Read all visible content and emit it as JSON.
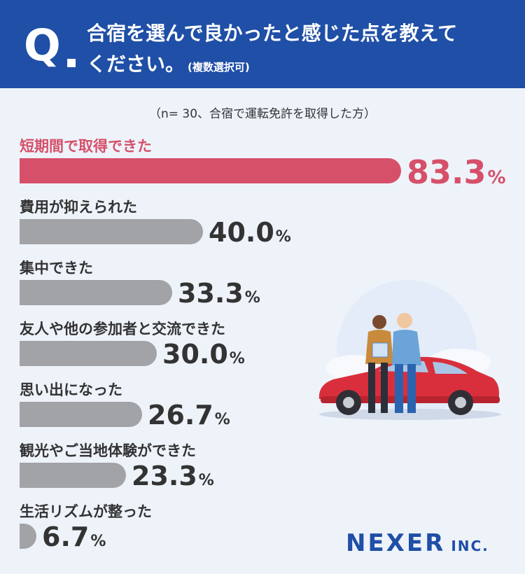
{
  "header": {
    "q": "Q",
    "line1": "合宿を選んで良かったと感じた点を教えて",
    "line2": "ください。",
    "note": "(複数選択可)"
  },
  "subtitle": "（n= 30、合宿で運転免許を取得した方）",
  "chart_data": {
    "type": "bar",
    "orientation": "horizontal",
    "title": "合宿を選んで良かったと感じた点を教えてください。(複数選択可)",
    "subtitle": "（n= 30、合宿で運転免許を取得した方）",
    "unit": "%",
    "xlim": [
      0,
      100
    ],
    "categories": [
      "短期間で取得できた",
      "費用が抑えられた",
      "集中できた",
      "友人や他の参加者と交流できた",
      "思い出になった",
      "観光やご当地体験ができた",
      "生活リズムが整った"
    ],
    "values": [
      83.3,
      40.0,
      33.3,
      30.0,
      26.7,
      23.3,
      6.7
    ],
    "value_labels": [
      "83.3",
      "40.0",
      "33.3",
      "30.0",
      "26.7",
      "23.3",
      "6.7"
    ],
    "highlight_color": "#d6506a",
    "bar_color": "#a2a3a7"
  },
  "logo": {
    "main": "NEXER",
    "sub": "INC."
  }
}
